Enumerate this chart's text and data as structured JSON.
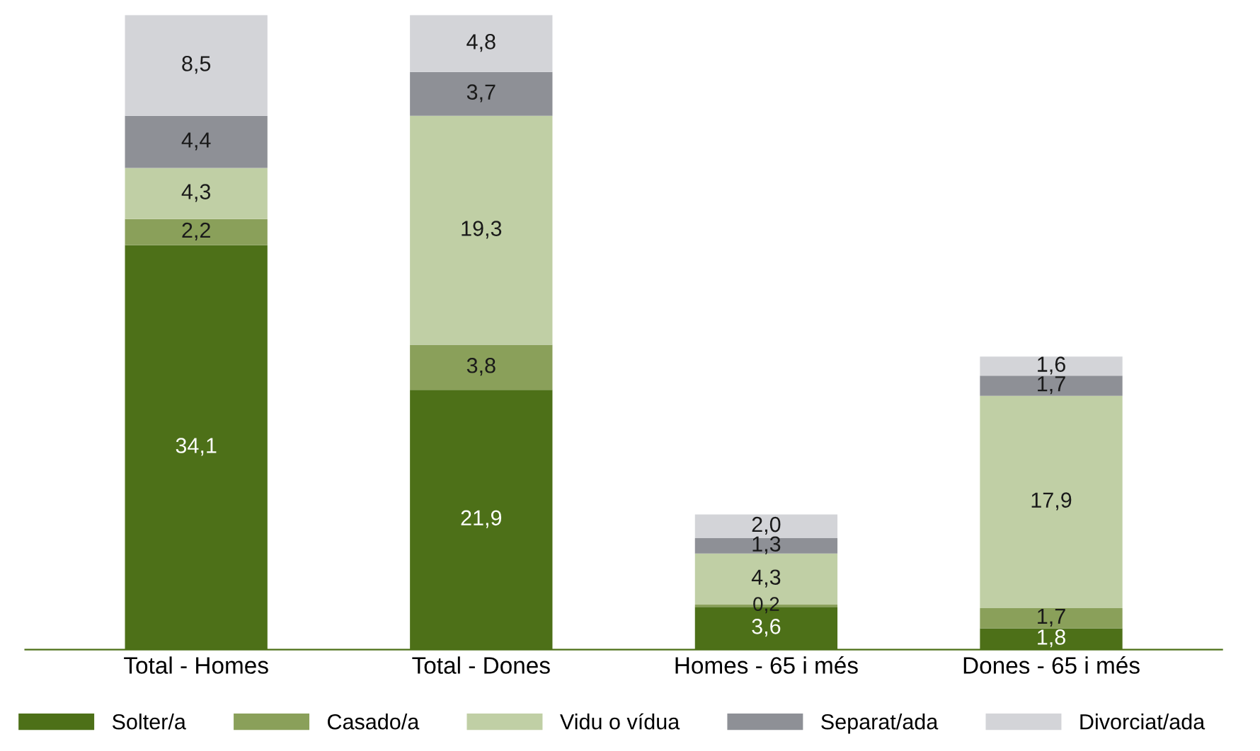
{
  "chart_data": {
    "type": "bar",
    "stacked": true,
    "legend": "bottom",
    "tick_labels": "x",
    "categories": [
      "Total - Homes",
      "Total - Dones",
      "Homes - 65 i més",
      "Dones - 65 i més"
    ],
    "series": [
      {
        "name": "Solter/a",
        "color": "#4d7018",
        "values": [
          34.1,
          21.9,
          3.6,
          1.8
        ],
        "value_labels": [
          "34,1",
          "21,9",
          "3,6",
          "1,8"
        ]
      },
      {
        "name": "Casado/a",
        "color": "#8aa05a",
        "values": [
          2.2,
          3.8,
          0.2,
          1.7
        ],
        "value_labels": [
          "2,2",
          "3,8",
          "0,2",
          "1,7"
        ]
      },
      {
        "name": "Vidu o vídua",
        "color": "#c0cfa5",
        "values": [
          4.3,
          19.3,
          4.3,
          17.9
        ],
        "value_labels": [
          "4,3",
          "19,3",
          "4,3",
          "17,9"
        ]
      },
      {
        "name": "Separat/ada",
        "color": "#8e9096",
        "values": [
          4.4,
          3.7,
          1.3,
          1.7
        ],
        "value_labels": [
          "4,4",
          "3,7",
          "1,3",
          "1,7"
        ]
      },
      {
        "name": "Divorciat/ada",
        "color": "#d3d4d8",
        "values": [
          8.5,
          4.8,
          2.0,
          1.6
        ],
        "value_labels": [
          "8,5",
          "4,8",
          "2,0",
          "1,6"
        ]
      }
    ]
  }
}
